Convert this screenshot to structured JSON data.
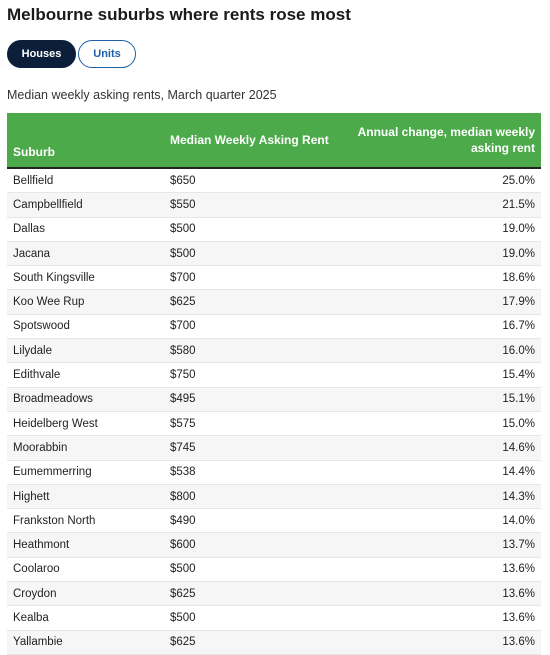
{
  "title": "Melbourne suburbs where rents rose most",
  "toggle": {
    "houses_label": "Houses",
    "units_label": "Units"
  },
  "subtitle": "Median weekly asking rents, March quarter 2025",
  "colors": {
    "header_green": "#4caa4a",
    "active_toggle": "#0b1f3a",
    "link_blue": "#1f5fa8"
  },
  "table": {
    "headers": {
      "suburb": "Suburb",
      "rent": "Median Weekly Asking Rent",
      "change": "Annual change, median weekly asking rent"
    },
    "rows": [
      {
        "suburb": "Bellfield",
        "rent": "$650",
        "change": "25.0%"
      },
      {
        "suburb": "Campbellfield",
        "rent": "$550",
        "change": "21.5%"
      },
      {
        "suburb": "Dallas",
        "rent": "$500",
        "change": "19.0%"
      },
      {
        "suburb": "Jacana",
        "rent": "$500",
        "change": "19.0%"
      },
      {
        "suburb": "South Kingsville",
        "rent": "$700",
        "change": "18.6%"
      },
      {
        "suburb": "Koo Wee Rup",
        "rent": "$625",
        "change": "17.9%"
      },
      {
        "suburb": "Spotswood",
        "rent": "$700",
        "change": "16.7%"
      },
      {
        "suburb": "Lilydale",
        "rent": "$580",
        "change": "16.0%"
      },
      {
        "suburb": "Edithvale",
        "rent": "$750",
        "change": "15.4%"
      },
      {
        "suburb": "Broadmeadows",
        "rent": "$495",
        "change": "15.1%"
      },
      {
        "suburb": "Heidelberg West",
        "rent": "$575",
        "change": "15.0%"
      },
      {
        "suburb": "Moorabbin",
        "rent": "$745",
        "change": "14.6%"
      },
      {
        "suburb": "Eumemmerring",
        "rent": "$538",
        "change": "14.4%"
      },
      {
        "suburb": "Highett",
        "rent": "$800",
        "change": "14.3%"
      },
      {
        "suburb": "Frankston North",
        "rent": "$490",
        "change": "14.0%"
      },
      {
        "suburb": "Heathmont",
        "rent": "$600",
        "change": "13.7%"
      },
      {
        "suburb": "Coolaroo",
        "rent": "$500",
        "change": "13.6%"
      },
      {
        "suburb": "Croydon",
        "rent": "$625",
        "change": "13.6%"
      },
      {
        "suburb": "Kealba",
        "rent": "$500",
        "change": "13.6%"
      },
      {
        "suburb": "Yallambie",
        "rent": "$625",
        "change": "13.6%"
      }
    ]
  }
}
